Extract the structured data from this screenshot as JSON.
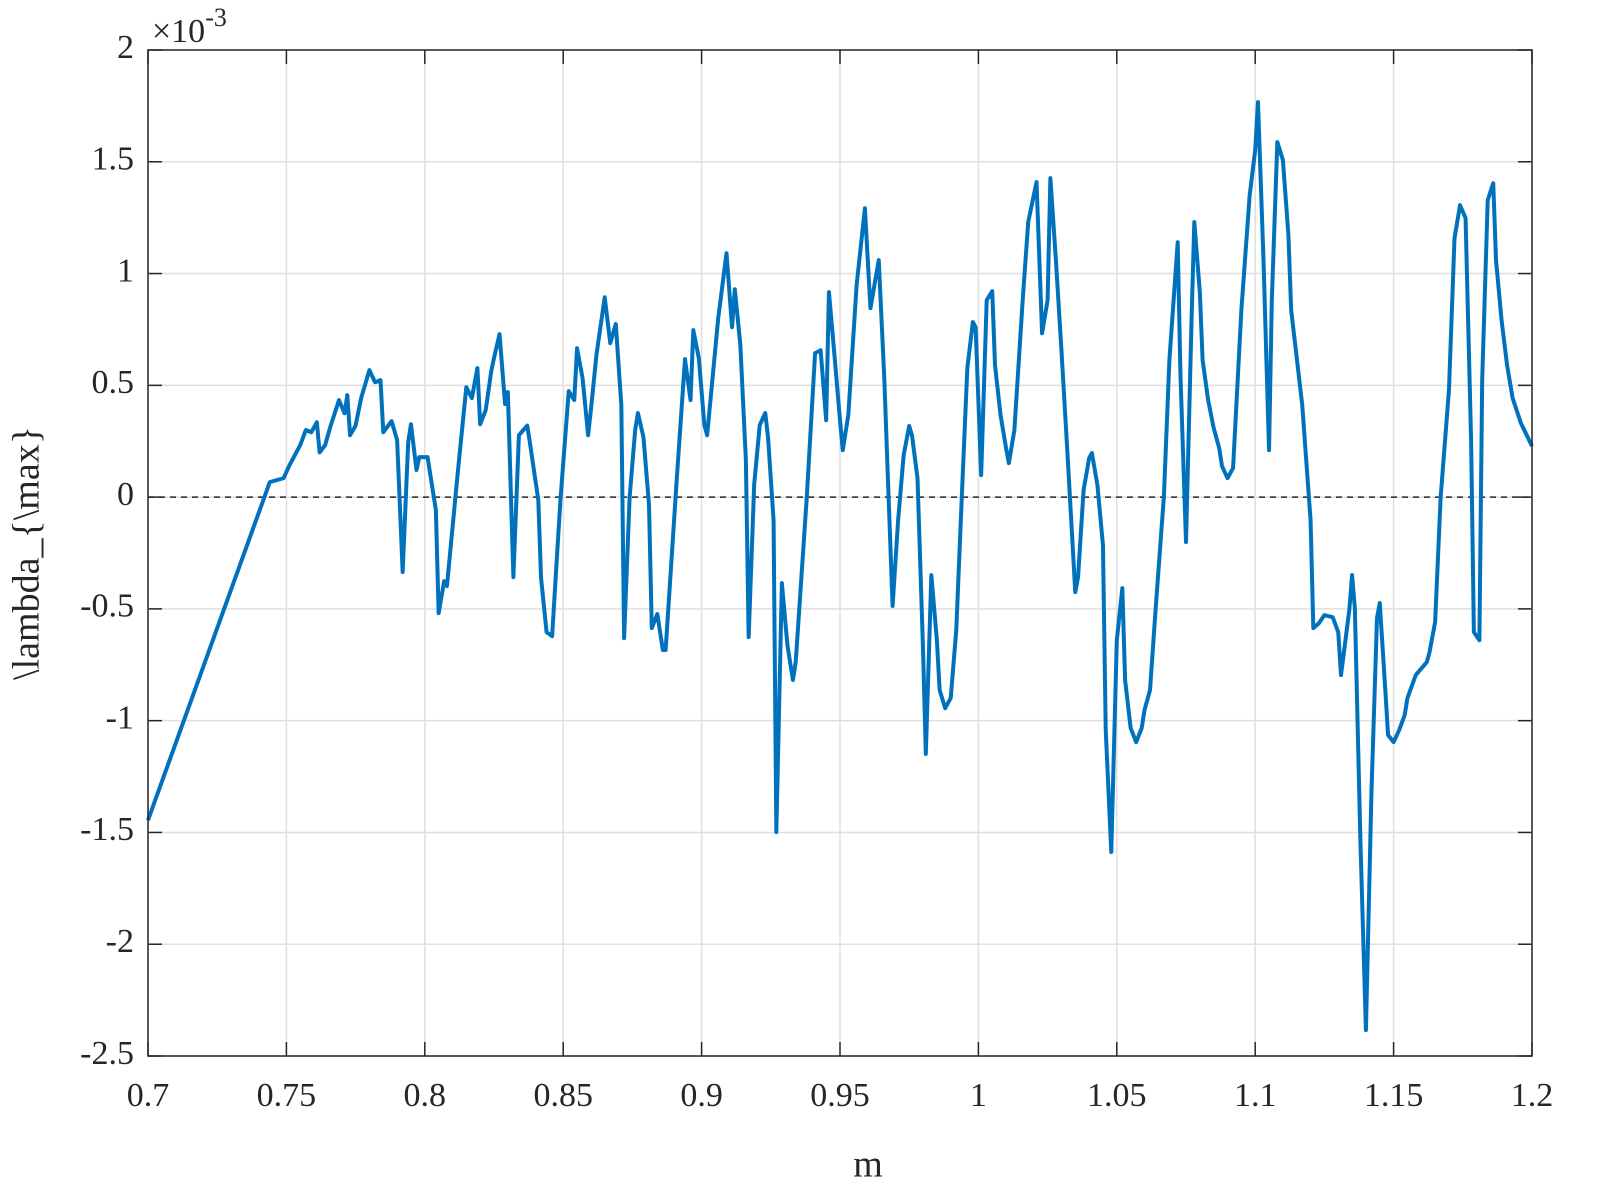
{
  "chart_data": {
    "type": "line",
    "xlabel": "m",
    "ylabel": "\\lambda_{\\max}",
    "y_multiplier_base": "×10",
    "y_multiplier_exponent": "-3",
    "xlim": [
      0.7,
      1.2
    ],
    "ylim": [
      -2.5,
      2
    ],
    "xticks": [
      0.7,
      0.75,
      0.8,
      0.85,
      0.9,
      0.95,
      1,
      1.05,
      1.1,
      1.15,
      1.2
    ],
    "yticks": [
      -2.5,
      -2,
      -1.5,
      -1,
      -0.5,
      0,
      0.5,
      1,
      1.5,
      2
    ],
    "grid": true,
    "reference_line": 0,
    "series": [
      {
        "color": "#0072bd",
        "x": [
          0.7,
          0.744,
          0.749,
          0.751,
          0.755,
          0.757,
          0.759,
          0.761,
          0.762,
          0.764,
          0.766,
          0.769,
          0.771,
          0.772,
          0.773,
          0.775,
          0.777,
          0.78,
          0.782,
          0.784,
          0.785,
          0.788,
          0.79,
          0.792,
          0.794,
          0.795,
          0.797,
          0.798,
          0.801,
          0.802,
          0.804,
          0.805,
          0.807,
          0.808,
          0.812,
          0.815,
          0.817,
          0.819,
          0.82,
          0.822,
          0.824,
          0.825,
          0.827,
          0.829,
          0.83,
          0.832,
          0.834,
          0.837,
          0.838,
          0.841,
          0.842,
          0.844,
          0.846,
          0.847,
          0.849,
          0.852,
          0.854,
          0.855,
          0.857,
          0.859,
          0.86,
          0.862,
          0.865,
          0.867,
          0.869,
          0.871,
          0.872,
          0.874,
          0.876,
          0.877,
          0.879,
          0.881,
          0.882,
          0.884,
          0.886,
          0.887,
          0.891,
          0.894,
          0.896,
          0.897,
          0.899,
          0.901,
          0.902,
          0.906,
          0.909,
          0.911,
          0.912,
          0.914,
          0.916,
          0.917,
          0.919,
          0.921,
          0.923,
          0.924,
          0.926,
          0.927,
          0.929,
          0.931,
          0.933,
          0.934,
          0.938,
          0.941,
          0.943,
          0.945,
          0.946,
          0.948,
          0.95,
          0.951,
          0.953,
          0.956,
          0.959,
          0.961,
          0.964,
          0.966,
          0.967,
          0.969,
          0.971,
          0.973,
          0.975,
          0.976,
          0.978,
          0.98,
          0.981,
          0.983,
          0.985,
          0.986,
          0.988,
          0.99,
          0.992,
          0.994,
          0.996,
          0.998,
          0.999,
          1.001,
          1.003,
          1.005,
          1.006,
          1.008,
          1.01,
          1.011,
          1.013,
          1.016,
          1.018,
          1.02,
          1.021,
          1.023,
          1.025,
          1.026,
          1.028,
          1.03,
          1.032,
          1.035,
          1.036,
          1.038,
          1.04,
          1.041,
          1.043,
          1.045,
          1.046,
          1.048,
          1.05,
          1.052,
          1.053,
          1.055,
          1.057,
          1.059,
          1.06,
          1.062,
          1.064,
          1.067,
          1.069,
          1.072,
          1.073,
          1.075,
          1.077,
          1.078,
          1.08,
          1.081,
          1.083,
          1.085,
          1.087,
          1.088,
          1.09,
          1.092,
          1.095,
          1.098,
          1.1,
          1.101,
          1.103,
          1.105,
          1.106,
          1.108,
          1.11,
          1.112,
          1.113,
          1.117,
          1.12,
          1.121,
          1.123,
          1.125,
          1.128,
          1.13,
          1.131,
          1.134,
          1.135,
          1.136,
          1.138,
          1.14,
          1.142,
          1.144,
          1.145,
          1.147,
          1.148,
          1.15,
          1.152,
          1.154,
          1.155,
          1.158,
          1.162,
          1.163,
          1.165,
          1.167,
          1.17,
          1.172,
          1.174,
          1.176,
          1.178,
          1.179,
          1.181,
          1.182,
          1.184,
          1.186,
          1.187,
          1.189,
          1.191,
          1.193,
          1.196,
          1.2
        ],
        "values": [
          -1.445,
          0.067,
          0.085,
          0.14,
          0.233,
          0.3,
          0.29,
          0.335,
          0.2,
          0.233,
          0.32,
          0.434,
          0.375,
          0.456,
          0.277,
          0.32,
          0.443,
          0.568,
          0.514,
          0.523,
          0.29,
          0.34,
          0.255,
          -0.335,
          0.246,
          0.326,
          0.121,
          0.179,
          0.179,
          0.1,
          -0.058,
          -0.519,
          -0.376,
          -0.398,
          0.121,
          0.492,
          0.443,
          0.577,
          0.326,
          0.389,
          0.563,
          0.622,
          0.729,
          0.416,
          0.47,
          -0.358,
          0.277,
          0.32,
          0.241,
          -0.013,
          -0.362,
          -0.604,
          -0.622,
          -0.416,
          -0.013,
          0.474,
          0.434,
          0.666,
          0.532,
          0.277,
          0.389,
          0.635,
          0.894,
          0.689,
          0.774,
          0.411,
          -0.631,
          0,
          0.3,
          0.376,
          0.268,
          -0.036,
          -0.586,
          -0.523,
          -0.684,
          -0.684,
          0.076,
          0.617,
          0.434,
          0.747,
          0.622,
          0.322,
          0.277,
          0.8,
          1.091,
          0.76,
          0.93,
          0.68,
          0.165,
          -0.626,
          0.058,
          0.322,
          0.376,
          0.268,
          -0.103,
          -1.498,
          -0.385,
          -0.662,
          -0.818,
          -0.738,
          0,
          0.644,
          0.657,
          0.344,
          0.917,
          0.635,
          0.344,
          0.21,
          0.367,
          0.948,
          1.292,
          0.845,
          1.06,
          0.532,
          0.188,
          -0.487,
          -0.103,
          0.188,
          0.318,
          0.277,
          0.085,
          -0.684,
          -1.149,
          -0.349,
          -0.64,
          -0.863,
          -0.944,
          -0.899,
          -0.595,
          0,
          0.577,
          0.783,
          0.76,
          0.098,
          0.881,
          0.921,
          0.59,
          0.367,
          0.219,
          0.152,
          0.3,
          0.881,
          1.23,
          1.35,
          1.409,
          0.733,
          0.881,
          1.427,
          1.06,
          0.657,
          0.233,
          -0.425,
          -0.358,
          0.031,
          0.174,
          0.197,
          0.054,
          -0.215,
          -1.042,
          -1.588,
          -0.64,
          -0.407,
          -0.818,
          -1.033,
          -1.096,
          -1.033,
          -0.953,
          -0.863,
          -0.505,
          0,
          0.613,
          1.14,
          0.546,
          -0.201,
          0.792,
          1.23,
          0.917,
          0.613,
          0.434,
          0.309,
          0.219,
          0.139,
          0.085,
          0.13,
          0.836,
          1.35,
          1.552,
          1.767,
          1.06,
          0.21,
          0.881,
          1.588,
          1.508,
          1.172,
          0.836,
          0.411,
          -0.103,
          -0.586,
          -0.564,
          -0.528,
          -0.537,
          -0.604,
          -0.796,
          -0.505,
          -0.349,
          -0.496,
          -1.534,
          -2.384,
          -1.319,
          -0.541,
          -0.474,
          -0.863,
          -1.064,
          -1.096,
          -1.042,
          -0.975,
          -0.899,
          -0.796,
          -0.738,
          -0.693,
          -0.559,
          0,
          0.479,
          1.158,
          1.306,
          1.248,
          0.255,
          -0.604,
          -0.64,
          0.523,
          1.328,
          1.404,
          1.06,
          0.792,
          0.59,
          0.443,
          0.331,
          0.228
        ]
      }
    ]
  }
}
